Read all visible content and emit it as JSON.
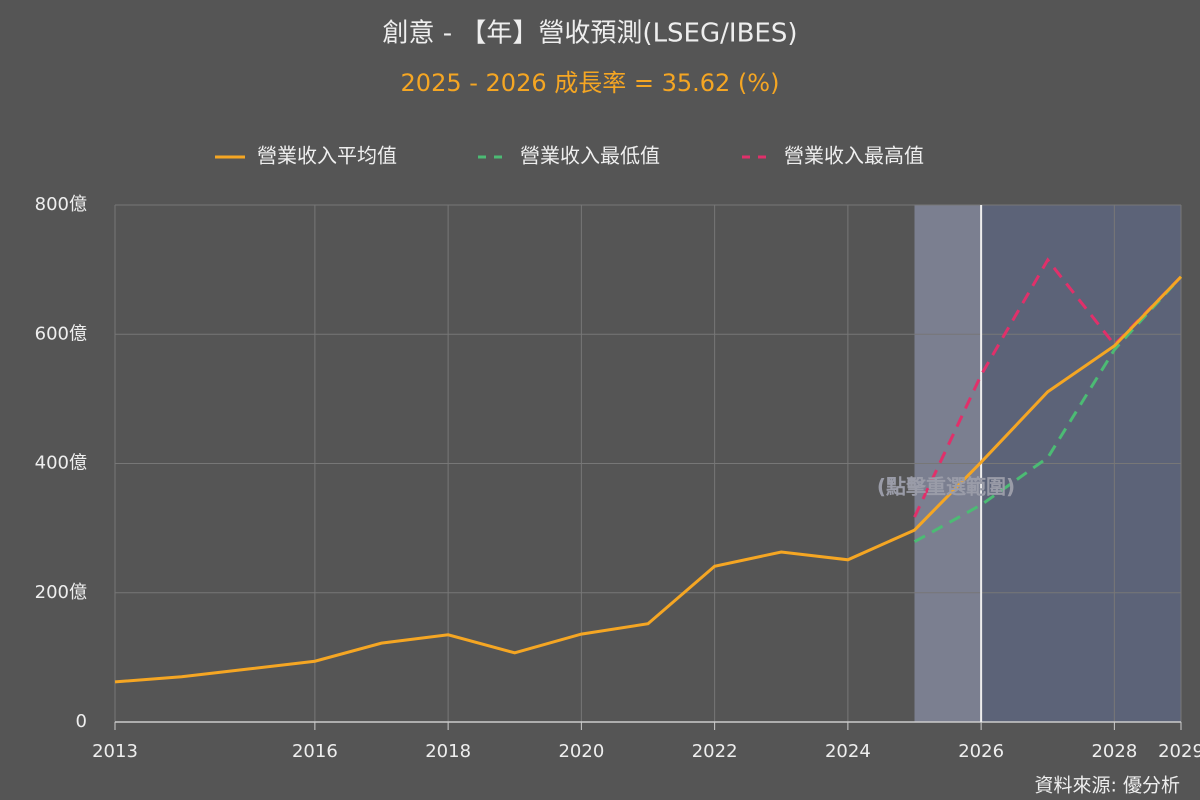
{
  "chart_data": {
    "type": "line",
    "title": "創意 - 【年】營收預測(LSEG/IBES)",
    "subtitle": "2025 - 2026 成長率 = 35.62 (%)",
    "annotation": "(點擊重選範圍)",
    "source": "資料來源: 優分析",
    "x": [
      2013,
      2014,
      2015,
      2016,
      2017,
      2018,
      2019,
      2020,
      2021,
      2022,
      2023,
      2024,
      2025,
      2026,
      2027,
      2028,
      2029
    ],
    "series": [
      {
        "name": "營業收入平均值",
        "color": "#f5a623",
        "dash": false,
        "values": [
          62,
          70,
          82,
          94,
          122,
          135,
          107,
          136,
          152,
          241,
          263,
          251,
          297,
          402,
          511,
          582,
          689
        ]
      },
      {
        "name": "營業收入最低值",
        "color": "#4cbb74",
        "dash": true,
        "values": [
          null,
          null,
          null,
          null,
          null,
          null,
          null,
          null,
          null,
          null,
          null,
          null,
          279,
          336,
          409,
          576,
          689
        ]
      },
      {
        "name": "營業收入最高值",
        "color": "#e0306a",
        "dash": true,
        "values": [
          null,
          null,
          null,
          null,
          null,
          null,
          null,
          null,
          null,
          null,
          null,
          null,
          317,
          537,
          715,
          584,
          689
        ]
      }
    ],
    "xlim": [
      2013,
      2029
    ],
    "xticks": [
      2013,
      2016,
      2018,
      2020,
      2022,
      2024,
      2026,
      2028,
      2029
    ],
    "ylim": [
      0,
      800
    ],
    "yticks": [
      0,
      {
        "value": 200,
        "label": "200億"
      },
      {
        "value": 400,
        "label": "400億"
      },
      {
        "value": 600,
        "label": "600億"
      },
      {
        "value": 800,
        "label": "800億"
      }
    ],
    "forecast_range": [
      2025,
      2029
    ],
    "brush_range": [
      2025,
      2026
    ],
    "grid": true,
    "legend": "top"
  }
}
